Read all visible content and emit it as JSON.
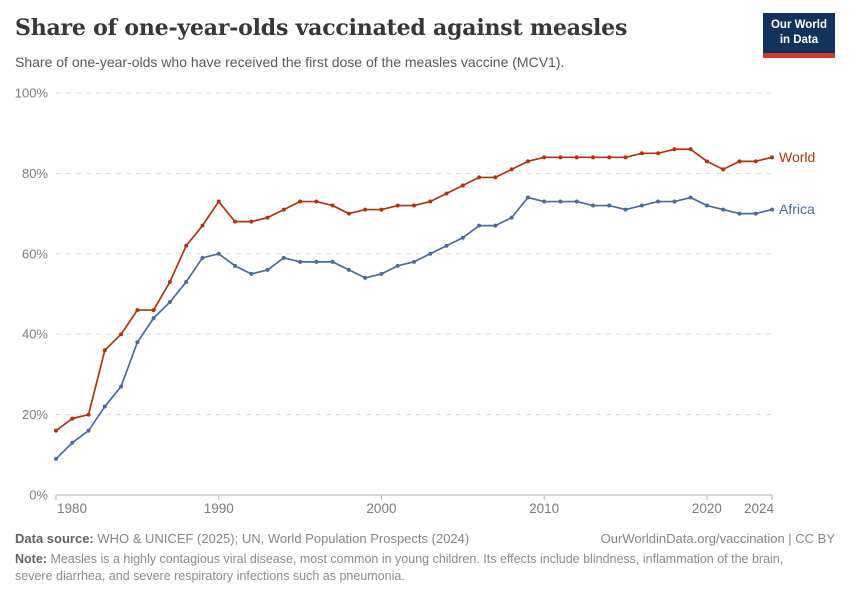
{
  "header": {
    "title": "Share of one-year-olds vaccinated against measles",
    "subtitle": "Share of one-year-olds who have received the first dose of the measles vaccine (MCV1).",
    "logo": {
      "line1": "Our World",
      "line2": "in Data",
      "bg_color": "#12325e",
      "bar_color": "#d8352f"
    }
  },
  "chart_data": {
    "type": "line",
    "title": "Share of one-year-olds vaccinated against measles",
    "xlabel": "",
    "ylabel": "",
    "ylim": [
      0,
      100
    ],
    "yticks": [
      0,
      20,
      40,
      60,
      80,
      100
    ],
    "ytick_suffix": "%",
    "xticks": [
      1980,
      1990,
      2000,
      2010,
      2020,
      2024
    ],
    "grid": "horizontal-dashed",
    "legend_position": "line-end-labels",
    "x": [
      1980,
      1981,
      1982,
      1983,
      1984,
      1985,
      1986,
      1987,
      1988,
      1989,
      1990,
      1991,
      1992,
      1993,
      1994,
      1995,
      1996,
      1997,
      1998,
      1999,
      2000,
      2001,
      2002,
      2003,
      2004,
      2005,
      2006,
      2007,
      2008,
      2009,
      2010,
      2011,
      2012,
      2013,
      2014,
      2015,
      2016,
      2017,
      2018,
      2019,
      2020,
      2021,
      2022,
      2023,
      2024
    ],
    "series": [
      {
        "name": "World",
        "color": "#b13507",
        "values": [
          16,
          19,
          20,
          36,
          40,
          46,
          46,
          53,
          62,
          67,
          73,
          68,
          68,
          69,
          71,
          73,
          73,
          72,
          70,
          71,
          71,
          72,
          72,
          73,
          75,
          77,
          79,
          79,
          81,
          83,
          84,
          84,
          84,
          84,
          84,
          84,
          85,
          85,
          86,
          86,
          83,
          81,
          83,
          83,
          84
        ]
      },
      {
        "name": "Africa",
        "color": "#4c6a9c",
        "values": [
          9,
          13,
          16,
          22,
          27,
          38,
          44,
          48,
          53,
          59,
          60,
          57,
          55,
          56,
          59,
          58,
          58,
          58,
          56,
          54,
          55,
          57,
          58,
          60,
          62,
          64,
          67,
          67,
          69,
          74,
          73,
          73,
          73,
          72,
          72,
          71,
          72,
          73,
          73,
          74,
          72,
          71,
          70,
          70,
          71
        ]
      }
    ]
  },
  "footer": {
    "datasource_label": "Data source:",
    "datasource_text": "WHO & UNICEF (2025); UN, World Population Prospects (2024)",
    "link_text": "OurWorldinData.org/vaccination | CC BY",
    "note_label": "Note:",
    "note_text": "Measles is a highly contagious viral disease, most common in young children. Its effects include blindness, inflammation of the brain, severe diarrhea, and severe respiratory infections such as pneumonia."
  }
}
